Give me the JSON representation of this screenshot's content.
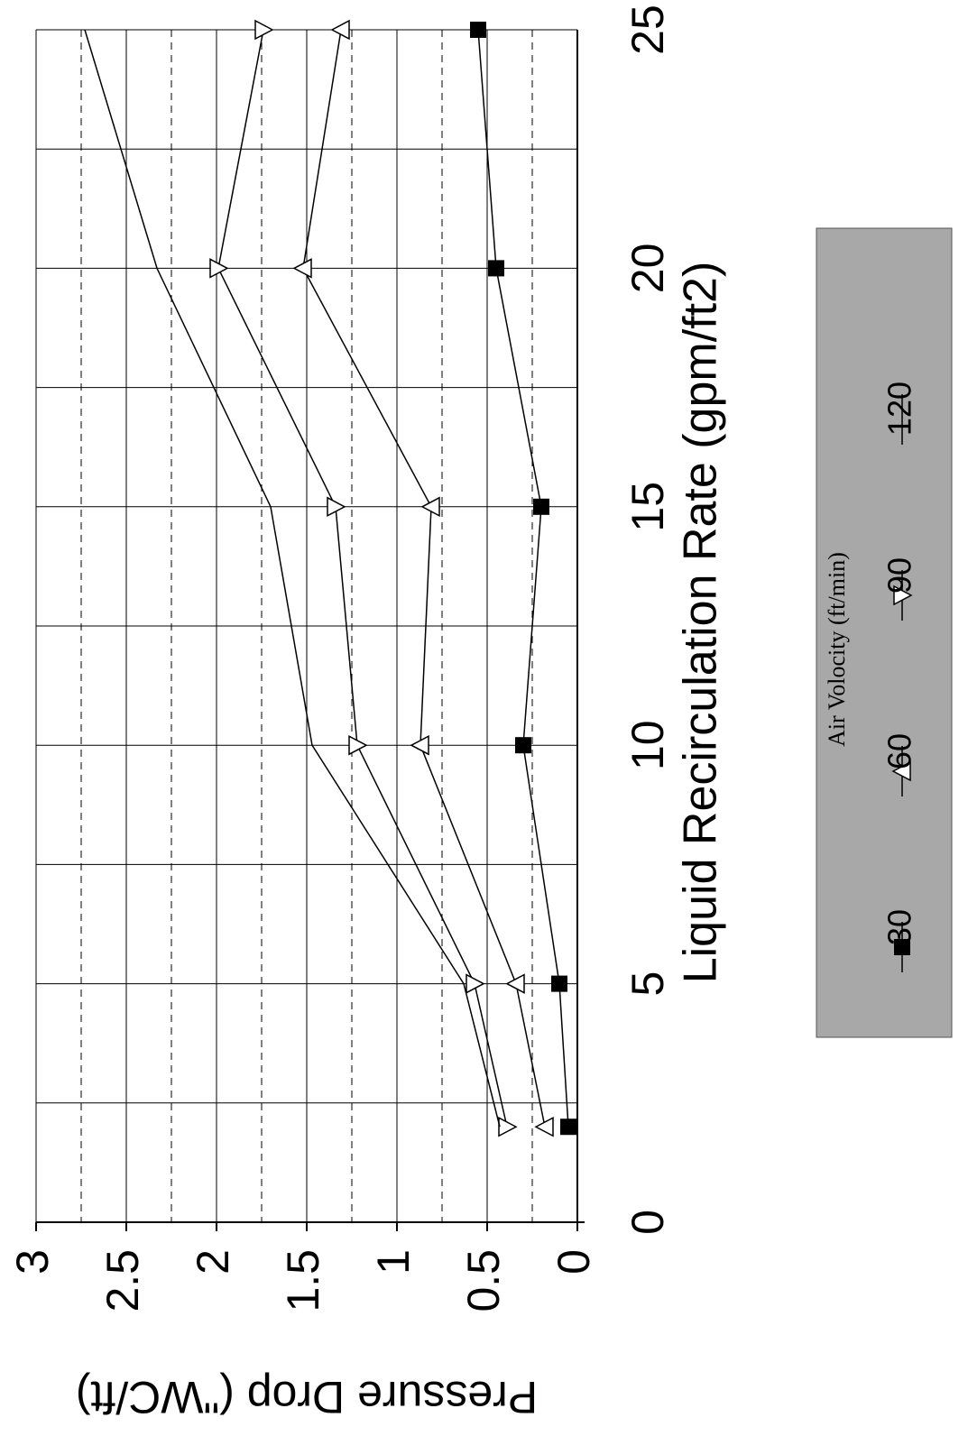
{
  "chart_data": {
    "type": "line",
    "x_label": "Liquid Recirculation Rate (gpm/ft2)",
    "y_label": "Pressure Drop (\"WC/ft)",
    "legend_title": "Air Volocity (ft/min)",
    "x": [
      2,
      5,
      10,
      15,
      20,
      25
    ],
    "series": [
      {
        "name": "30",
        "color": "#000000",
        "marker": "square",
        "values": [
          0.05,
          0.1,
          0.3,
          0.2,
          0.45,
          0.55
        ]
      },
      {
        "name": "60",
        "color": "#000000",
        "marker": "triangle-up",
        "values": [
          0.18,
          0.34,
          0.87,
          0.81,
          1.52,
          1.31
        ]
      },
      {
        "name": "90",
        "color": "#000000",
        "marker": "triangle-down",
        "values": [
          0.39,
          0.57,
          1.22,
          1.34,
          1.99,
          1.74
        ]
      },
      {
        "name": "120",
        "color": "#000000",
        "marker": "none",
        "values": [
          0.43,
          0.63,
          1.47,
          1.7,
          2.33,
          2.73
        ]
      }
    ],
    "xlim": [
      0,
      25
    ],
    "xticks": [
      0,
      5,
      10,
      15,
      20,
      25
    ],
    "ylim": [
      0,
      3
    ],
    "yticks": [
      0,
      0.5,
      1,
      1.5,
      2,
      2.5,
      3
    ],
    "grid": true
  }
}
